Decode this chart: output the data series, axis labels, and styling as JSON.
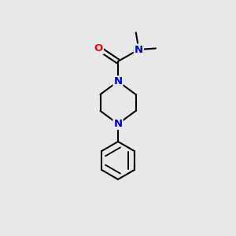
{
  "bg_color": "#e8e8e8",
  "bond_color": "#000000",
  "bond_width": 1.5,
  "atom_colors": {
    "N": "#0000cc",
    "O": "#ff0000",
    "C": "#000000"
  },
  "font_size": 8.5,
  "fig_size": [
    3.0,
    3.0
  ],
  "dpi": 100,
  "xlim": [
    0,
    10
  ],
  "ylim": [
    0,
    10
  ]
}
